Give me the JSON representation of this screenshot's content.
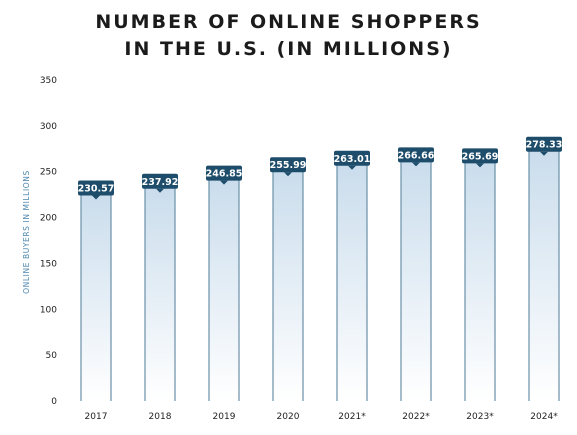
{
  "chart_data": {
    "type": "bar",
    "title_lines": [
      "NUMBER OF ONLINE SHOPPERS",
      "IN THE U.S. (IN MILLIONS)"
    ],
    "ylabel": "ONLINE BUYERS IN MILLIONS",
    "xlabel": "",
    "categories": [
      "2017",
      "2018",
      "2019",
      "2020",
      "2021*",
      "2022*",
      "2023*",
      "2024*"
    ],
    "values": [
      230.57,
      237.92,
      246.85,
      255.99,
      263.01,
      266.66,
      265.69,
      278.33
    ],
    "value_labels": [
      "230.57",
      "237.92",
      "246.85",
      "255.99",
      "263.01",
      "266.66",
      "265.69",
      "278.33"
    ],
    "ylim": [
      0,
      350
    ],
    "yticks": [
      "0",
      "50",
      "100",
      "150",
      "200",
      "250",
      "300",
      "350"
    ],
    "grid": false,
    "legend": "none",
    "colors": {
      "bar_top": "#c9dcec",
      "bar_bottom": "#ffffff",
      "bar_edge": "#6a8fa8",
      "label_bg": "#1e4d6b",
      "label_text": "#ffffff",
      "axis_label": "#4a86ad"
    }
  }
}
